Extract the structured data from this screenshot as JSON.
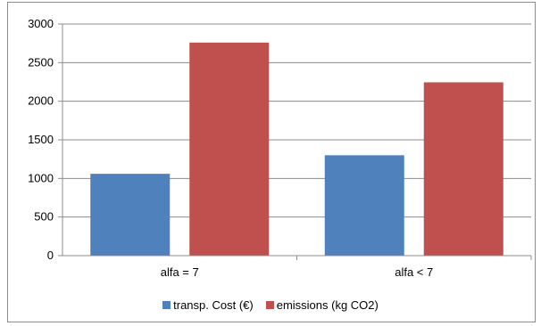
{
  "chart_data": {
    "type": "bar",
    "categories": [
      "alfa = 7",
      "alfa < 7"
    ],
    "series": [
      {
        "name": "transp. Cost (€)",
        "values": [
          1060,
          1300
        ],
        "color": "#4f81bd"
      },
      {
        "name": "emissions (kg CO2)",
        "values": [
          2760,
          2245
        ],
        "color": "#c0504d"
      }
    ],
    "ylim": [
      0,
      3000
    ],
    "yticks": [
      0,
      500,
      1000,
      1500,
      2000,
      2500,
      3000
    ],
    "grid": true,
    "legend_position": "bottom"
  }
}
